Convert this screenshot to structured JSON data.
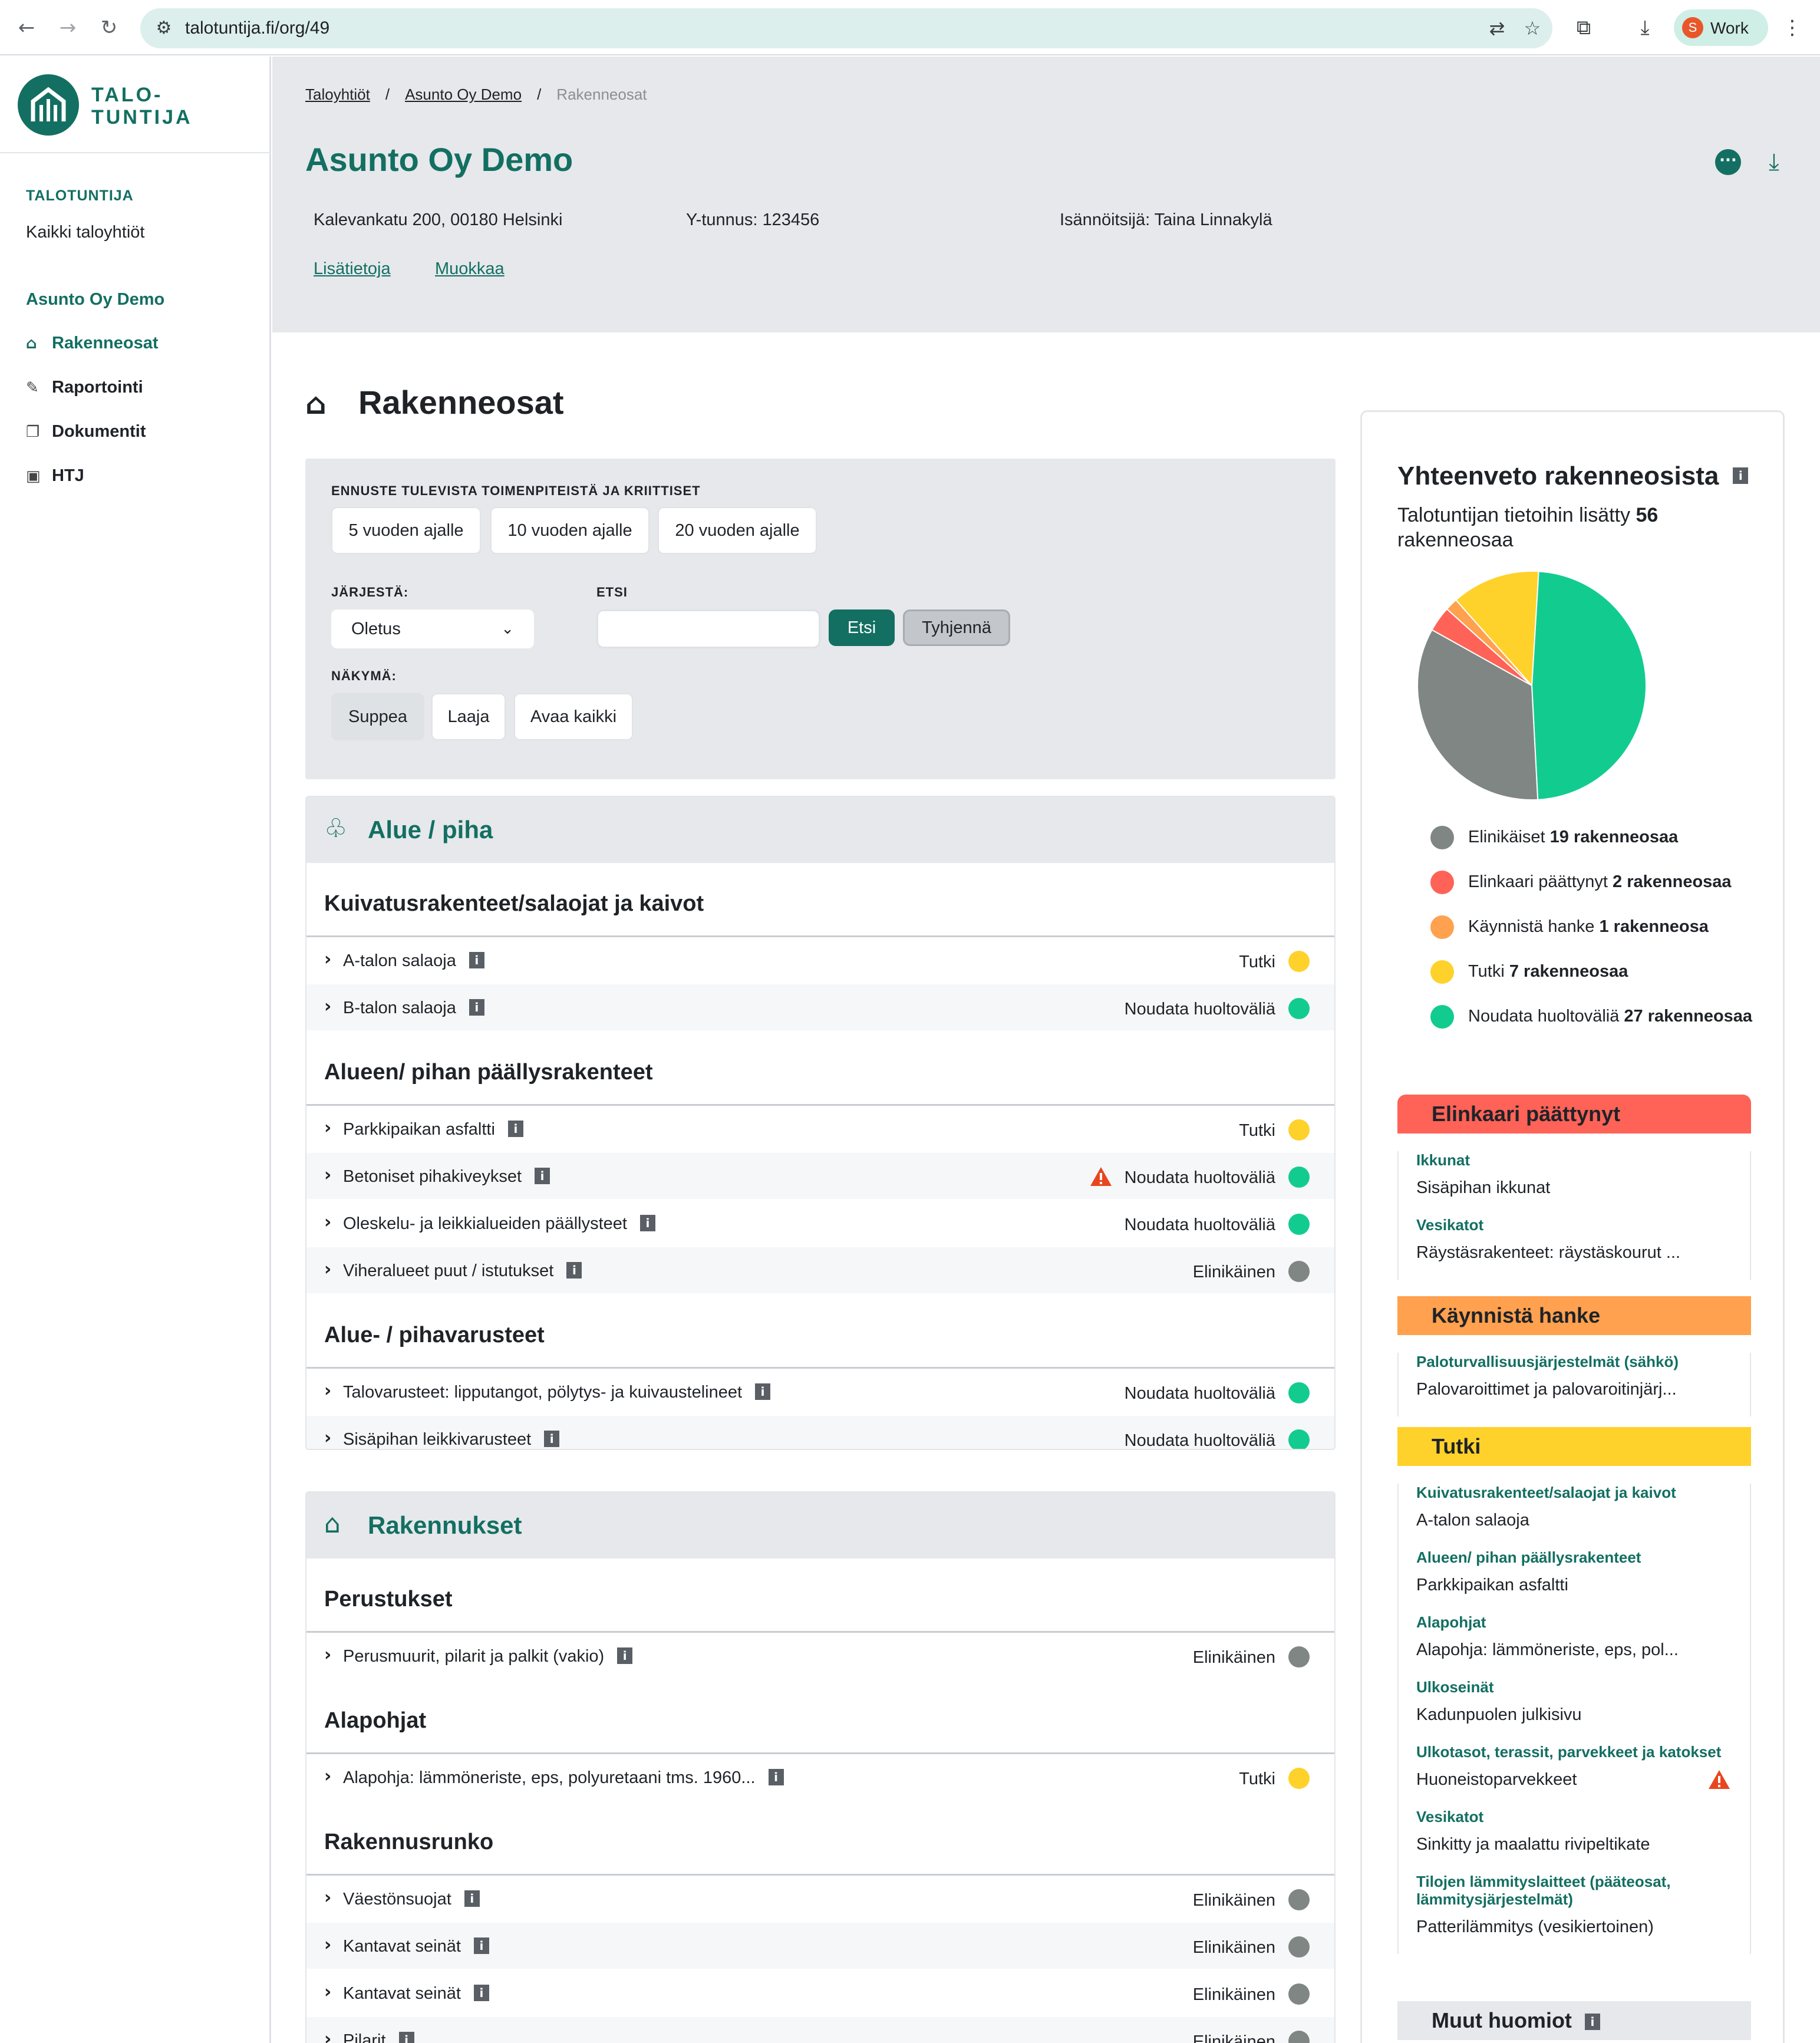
{
  "browser": {
    "url": "talotuntija.fi/org/49",
    "profile_initial": "S",
    "profile_label": "Work"
  },
  "sidebar": {
    "logo_line1": "TALO-",
    "logo_line2": "TUNTIJA",
    "caption": "TALOTUNTIJA",
    "all_orgs": "Kaikki taloyhtiöt",
    "org": "Asunto Oy Demo",
    "items": [
      {
        "label": "Rakenneosat",
        "icon": "rakenneosat-icon"
      },
      {
        "label": "Raportointi",
        "icon": "report-icon"
      },
      {
        "label": "Dokumentit",
        "icon": "documents-icon"
      },
      {
        "label": "HTJ",
        "icon": "htj-icon"
      }
    ]
  },
  "header": {
    "breadcrumb": [
      "Taloyhtiöt",
      "Asunto Oy Demo",
      "Rakenneosat"
    ],
    "title": "Asunto Oy Demo",
    "address": "Kalevankatu 200, 00180 Helsinki",
    "ytunnus": "Y-tunnus: 123456",
    "manager": "Isännöitsijä: Taina Linnakylä",
    "link_info": "Lisätietoja",
    "link_edit": "Muokkaa"
  },
  "main": {
    "title": "Rakenneosat",
    "filters": {
      "forecast_label": "ENNUSTE TULEVISTA TOIMENPITEISTÄ JA KRIITTISET",
      "forecast_buttons": [
        "5 vuoden ajalle",
        "10 vuoden ajalle",
        "20 vuoden ajalle"
      ],
      "sort_label": "JÄRJESTÄ:",
      "sort_value": "Oletus",
      "search_label": "ETSI",
      "search_value": "",
      "search_button": "Etsi",
      "clear_button": "Tyhjennä",
      "view_label": "NÄKYMÄ:",
      "view_buttons": [
        "Suppea",
        "Laaja",
        "Avaa kaikki"
      ]
    },
    "categories": [
      {
        "title": "Alue / piha",
        "groups": [
          {
            "title": "Kuivatusrakenteet/salaojat ja kaivot",
            "rows": [
              {
                "name": "A-talon salaoja",
                "status": "Tutki"
              },
              {
                "name": "B-talon salaoja",
                "status": "Noudata huoltoväliä"
              }
            ]
          },
          {
            "title": "Alueen/ pihan päällysrakenteet",
            "rows": [
              {
                "name": "Parkkipaikan asfaltti",
                "status": "Tutki"
              },
              {
                "name": "Betoniset pihakiveykset",
                "status": "Noudata huoltoväliä"
              },
              {
                "name": "Oleskelu- ja leikkialueiden päällysteet",
                "status": "Noudata huoltoväliä"
              },
              {
                "name": "Viheralueet puut / istutukset",
                "status": "Elinikäinen"
              }
            ]
          },
          {
            "title": "Alue- / pihavarusteet",
            "rows": [
              {
                "name": "Talovarusteet: lipputangot, pölytys- ja kuivaustelineet",
                "status": "Noudata huoltoväliä"
              },
              {
                "name": "Sisäpihan leikkivarusteet",
                "status": "Noudata huoltoväliä"
              }
            ]
          }
        ]
      },
      {
        "title": "Rakennukset",
        "groups": [
          {
            "title": "Perustukset",
            "rows": [
              {
                "name": "Perusmuurit, pilarit ja palkit (vakio)",
                "status": "Elinikäinen"
              }
            ]
          },
          {
            "title": "Alapohjat",
            "rows": [
              {
                "name": "Alapohja: lämmöneriste, eps, polyuretaani tms. 1960...",
                "status": "Tutki"
              }
            ]
          },
          {
            "title": "Rakennusrunko",
            "rows": [
              {
                "name": "Väestönsuojat",
                "status": "Elinikäinen"
              },
              {
                "name": "Kantavat seinät",
                "status": "Elinikäinen"
              },
              {
                "name": "Kantavat seinät",
                "status": "Elinikäinen"
              },
              {
                "name": "Pilarit",
                "status": "Elinikäinen"
              }
            ]
          }
        ]
      }
    ]
  },
  "summary": {
    "title": "Yhteenveto rakenneosista",
    "subtitle_prefix": "Talotuntijan tietoihin lisätty",
    "subtitle_count": "56",
    "subtitle_suffix": "rakenneosaa",
    "legend": [
      {
        "label": "Elinikäiset",
        "count": "19 rakenneosaa",
        "color": "#7f8683"
      },
      {
        "label": "Elinkaari päättynyt",
        "count": "2 rakenneosaa",
        "color": "#ff6257"
      },
      {
        "label": "Käynnistä hanke",
        "count": "1 rakenneosa",
        "color": "#ffa14e"
      },
      {
        "label": "Tutki",
        "count": "7 rakenneosaa",
        "color": "#ffd12b"
      },
      {
        "label": "Noudata huoltoväliä",
        "count": "27 rakenneosaa",
        "color": "#12cc8f"
      }
    ],
    "lists": [
      {
        "title": "Elinkaari päättynyt",
        "color": "#ff6257",
        "items": [
          {
            "category": "Ikkunat",
            "item": "Sisäpihan ikkunat"
          },
          {
            "category": "Vesikatot",
            "item": "Räystäsrakenteet: räystäskourut ..."
          }
        ]
      },
      {
        "title": "Käynnistä hanke",
        "color": "#ffa14e",
        "items": [
          {
            "category": "Paloturvallisuusjärjestelmät (sähkö)",
            "item": "Palovaroittimet ja palovaroitinjärj..."
          }
        ]
      },
      {
        "title": "Tutki",
        "color": "#ffd12b",
        "items": [
          {
            "category": "Kuivatusrakenteet/salaojat ja kaivot",
            "item": "A-talon salaoja"
          },
          {
            "category": "Alueen/ pihan päällysrakenteet",
            "item": "Parkkipaikan asfaltti"
          },
          {
            "category": "Alapohjat",
            "item": "Alapohja: lämmöneriste, eps, pol..."
          },
          {
            "category": "Ulkoseinät",
            "item": "Kadunpuolen julkisivu"
          },
          {
            "category": "Ulkotasot, terassit, parvekkeet ja katokset",
            "item": "Huoneistoparvekkeet"
          },
          {
            "category": "Vesikatot",
            "item": "Sinkitty ja maalattu rivipeltikate"
          },
          {
            "category": "Tilojen lämmityslaitteet (pääteosat, lämmitysjärjestelmät)",
            "item": "Patterilämmitys (vesikiertoinen)"
          }
        ]
      },
      {
        "title": "Muut huomiot",
        "color": "#e6e8eb",
        "items": []
      }
    ]
  }
}
